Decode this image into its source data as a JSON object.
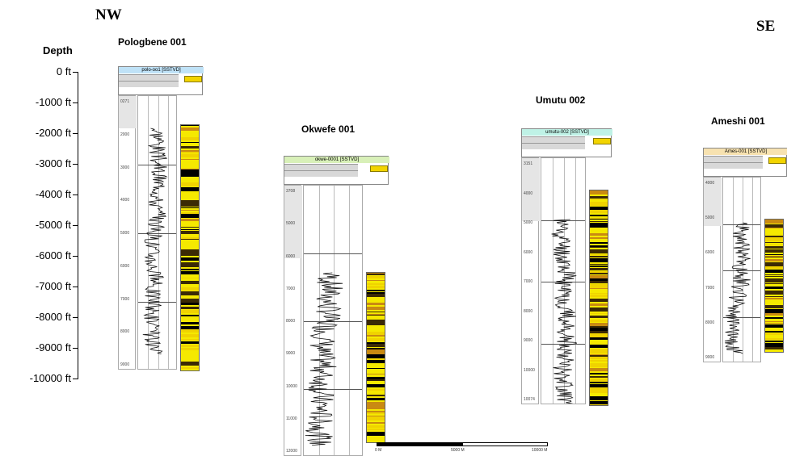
{
  "direction": {
    "left": "NW",
    "right": "SE"
  },
  "depth_axis": {
    "title": "Depth",
    "ticks": [
      "0 ft",
      "-1000 ft",
      "-2000 ft",
      "-3000 ft",
      "-4000 ft",
      "-5000 ft",
      "-6000 ft",
      "-7000 ft",
      "-8000 ft",
      "-9000 ft",
      "-10000 ft"
    ]
  },
  "wells": [
    {
      "name": "Pologbene 001",
      "header_title": "polo-oo1 [SSTVD]",
      "depth_labels": [
        "0271",
        "2000",
        "3000",
        "4000",
        "5000",
        "6000",
        "7000",
        "8000",
        "9000"
      ],
      "lith_colors": [
        "#f5e900",
        "#c98a12",
        "#3b2a05",
        "#000000",
        "#f0d300"
      ]
    },
    {
      "name": "Okwefe 001",
      "header_title": "okwe-0001 [SSTVD]",
      "depth_labels": [
        "3708",
        "5000",
        "6000",
        "7000",
        "8000",
        "9000",
        "10000",
        "11000",
        "12000"
      ],
      "lith_colors": [
        "#f5e900",
        "#c98a12",
        "#3b2a05",
        "#000000",
        "#f0d300"
      ]
    },
    {
      "name": "Umutu 002",
      "header_title": "umutu-002 [SSTVD]",
      "depth_labels": [
        "3151",
        "4000",
        "5000",
        "6000",
        "7000",
        "8000",
        "9000",
        "10000",
        "10074"
      ],
      "lith_colors": [
        "#f5e900",
        "#c98a12",
        "#3b2a05",
        "#000000",
        "#f0d300"
      ]
    },
    {
      "name": "Ameshi 001",
      "header_title": "Ames-001 [SSTVD]",
      "depth_labels": [
        "4000",
        "5000",
        "6000",
        "7000",
        "8000",
        "9000"
      ],
      "lith_colors": [
        "#f5e900",
        "#c98a12",
        "#3b2a05",
        "#000000",
        "#f0d300"
      ]
    }
  ],
  "scale_bar": {
    "labels": [
      "0 M",
      "5000 M",
      "10000 M"
    ]
  }
}
